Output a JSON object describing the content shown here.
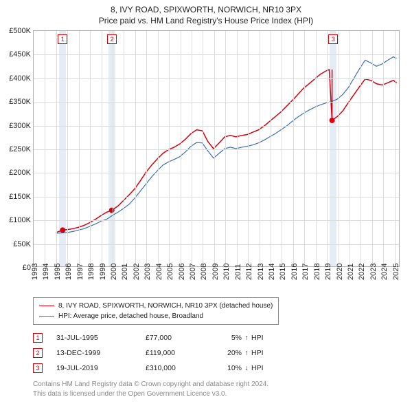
{
  "title": {
    "line1": "8, IVY ROAD, SPIXWORTH, NORWICH, NR10 3PX",
    "line2": "Price paid vs. HM Land Registry's House Price Index (HPI)"
  },
  "chart": {
    "type": "line",
    "x_axis": {
      "min": 1993,
      "max": 2025.5,
      "ticks": [
        1993,
        1994,
        1995,
        1996,
        1997,
        1998,
        1999,
        2000,
        2001,
        2002,
        2003,
        2004,
        2005,
        2006,
        2007,
        2008,
        2009,
        2010,
        2011,
        2012,
        2013,
        2014,
        2015,
        2016,
        2017,
        2018,
        2019,
        2020,
        2021,
        2022,
        2023,
        2024,
        2025
      ]
    },
    "y_axis": {
      "min": 0,
      "max": 500000,
      "tick_step": 50000,
      "labels": [
        "£0",
        "£50K",
        "£100K",
        "£150K",
        "£200K",
        "£250K",
        "£300K",
        "£350K",
        "£400K",
        "£450K",
        "£500K"
      ]
    },
    "grid_color": "#dcdcdc",
    "border_color": "#b0b0b0",
    "background_color": "#ffffff",
    "series": [
      {
        "name": "8, IVY ROAD, SPIXWORTH, NORWICH, NR10 3PX (detached house)",
        "color": "#d4000c",
        "line_width": 1.5,
        "points": [
          [
            1995.0,
            72000
          ],
          [
            1995.58,
            77000
          ],
          [
            1996.0,
            78000
          ],
          [
            1996.5,
            80000
          ],
          [
            1997.0,
            83000
          ],
          [
            1997.5,
            87000
          ],
          [
            1998.0,
            93000
          ],
          [
            1998.5,
            100000
          ],
          [
            1999.0,
            108000
          ],
          [
            1999.5,
            115000
          ],
          [
            1999.95,
            119000
          ],
          [
            2000.5,
            128000
          ],
          [
            2001.0,
            140000
          ],
          [
            2001.5,
            152000
          ],
          [
            2002.0,
            165000
          ],
          [
            2002.5,
            182000
          ],
          [
            2003.0,
            200000
          ],
          [
            2003.5,
            215000
          ],
          [
            2004.0,
            228000
          ],
          [
            2004.5,
            240000
          ],
          [
            2005.0,
            248000
          ],
          [
            2005.5,
            253000
          ],
          [
            2006.0,
            260000
          ],
          [
            2006.5,
            270000
          ],
          [
            2007.0,
            282000
          ],
          [
            2007.5,
            290000
          ],
          [
            2008.0,
            288000
          ],
          [
            2008.5,
            265000
          ],
          [
            2009.0,
            250000
          ],
          [
            2009.5,
            262000
          ],
          [
            2010.0,
            275000
          ],
          [
            2010.5,
            278000
          ],
          [
            2011.0,
            275000
          ],
          [
            2011.5,
            278000
          ],
          [
            2012.0,
            280000
          ],
          [
            2012.5,
            285000
          ],
          [
            2013.0,
            290000
          ],
          [
            2013.5,
            298000
          ],
          [
            2014.0,
            308000
          ],
          [
            2014.5,
            318000
          ],
          [
            2015.0,
            328000
          ],
          [
            2015.5,
            340000
          ],
          [
            2016.0,
            352000
          ],
          [
            2016.5,
            365000
          ],
          [
            2017.0,
            378000
          ],
          [
            2017.5,
            388000
          ],
          [
            2018.0,
            398000
          ],
          [
            2018.5,
            408000
          ],
          [
            2019.0,
            415000
          ],
          [
            2019.3,
            418000
          ],
          [
            2019.55,
            310000
          ],
          [
            2020.0,
            318000
          ],
          [
            2020.5,
            330000
          ],
          [
            2021.0,
            348000
          ],
          [
            2021.5,
            365000
          ],
          [
            2022.0,
            382000
          ],
          [
            2022.5,
            398000
          ],
          [
            2023.0,
            395000
          ],
          [
            2023.5,
            388000
          ],
          [
            2024.0,
            385000
          ],
          [
            2024.5,
            390000
          ],
          [
            2025.0,
            395000
          ],
          [
            2025.3,
            390000
          ]
        ]
      },
      {
        "name": "HPI: Average price, detached house, Broadland",
        "color": "#3b6fb6",
        "line_width": 1.2,
        "points": [
          [
            1995.0,
            70000
          ],
          [
            1995.5,
            71000
          ],
          [
            1996.0,
            72000
          ],
          [
            1996.5,
            74000
          ],
          [
            1997.0,
            77000
          ],
          [
            1997.5,
            80000
          ],
          [
            1998.0,
            85000
          ],
          [
            1998.5,
            90000
          ],
          [
            1999.0,
            96000
          ],
          [
            1999.5,
            100000
          ],
          [
            2000.0,
            108000
          ],
          [
            2000.5,
            115000
          ],
          [
            2001.0,
            123000
          ],
          [
            2001.5,
            132000
          ],
          [
            2002.0,
            145000
          ],
          [
            2002.5,
            160000
          ],
          [
            2003.0,
            175000
          ],
          [
            2003.5,
            190000
          ],
          [
            2004.0,
            203000
          ],
          [
            2004.5,
            215000
          ],
          [
            2005.0,
            222000
          ],
          [
            2005.5,
            227000
          ],
          [
            2006.0,
            233000
          ],
          [
            2006.5,
            243000
          ],
          [
            2007.0,
            255000
          ],
          [
            2007.5,
            263000
          ],
          [
            2008.0,
            262000
          ],
          [
            2008.5,
            245000
          ],
          [
            2009.0,
            230000
          ],
          [
            2009.5,
            240000
          ],
          [
            2010.0,
            250000
          ],
          [
            2010.5,
            253000
          ],
          [
            2011.0,
            250000
          ],
          [
            2011.5,
            253000
          ],
          [
            2012.0,
            255000
          ],
          [
            2012.5,
            258000
          ],
          [
            2013.0,
            262000
          ],
          [
            2013.5,
            268000
          ],
          [
            2014.0,
            275000
          ],
          [
            2014.5,
            282000
          ],
          [
            2015.0,
            290000
          ],
          [
            2015.5,
            298000
          ],
          [
            2016.0,
            308000
          ],
          [
            2016.5,
            317000
          ],
          [
            2017.0,
            325000
          ],
          [
            2017.5,
            332000
          ],
          [
            2018.0,
            338000
          ],
          [
            2018.5,
            343000
          ],
          [
            2019.0,
            347000
          ],
          [
            2019.5,
            350000
          ],
          [
            2020.0,
            355000
          ],
          [
            2020.5,
            365000
          ],
          [
            2021.0,
            380000
          ],
          [
            2021.5,
            400000
          ],
          [
            2022.0,
            420000
          ],
          [
            2022.5,
            438000
          ],
          [
            2023.0,
            432000
          ],
          [
            2023.5,
            425000
          ],
          [
            2024.0,
            430000
          ],
          [
            2024.5,
            438000
          ],
          [
            2025.0,
            445000
          ],
          [
            2025.3,
            442000
          ]
        ]
      }
    ],
    "sale_points": {
      "color": "#d4000c",
      "radius": 4,
      "items": [
        {
          "x": 1995.58,
          "y": 77000
        },
        {
          "x": 1999.95,
          "y": 119000
        },
        {
          "x": 2019.55,
          "y": 310000
        }
      ]
    },
    "vertical_markers": [
      {
        "label": "1",
        "x": 1995.58
      },
      {
        "label": "2",
        "x": 1999.95
      },
      {
        "label": "3",
        "x": 2019.55
      }
    ],
    "marker_band_color": "#e6ecf5"
  },
  "legend": {
    "series1": "8, IVY ROAD, SPIXWORTH, NORWICH, NR10 3PX (detached house)",
    "series2": "HPI: Average price, detached house, Broadland",
    "colors": [
      "#d4000c",
      "#3b6fb6"
    ]
  },
  "transactions": [
    {
      "n": "1",
      "date": "31-JUL-1995",
      "price": "£77,000",
      "pct": "5%",
      "arrow": "↑",
      "hpi": "HPI"
    },
    {
      "n": "2",
      "date": "13-DEC-1999",
      "price": "£119,000",
      "pct": "20%",
      "arrow": "↑",
      "hpi": "HPI"
    },
    {
      "n": "3",
      "date": "19-JUL-2019",
      "price": "£310,000",
      "pct": "10%",
      "arrow": "↓",
      "hpi": "HPI"
    }
  ],
  "footer": {
    "line1": "Contains HM Land Registry data © Crown copyright and database right 2024.",
    "line2": "This data is licensed under the Open Government Licence v3.0."
  }
}
